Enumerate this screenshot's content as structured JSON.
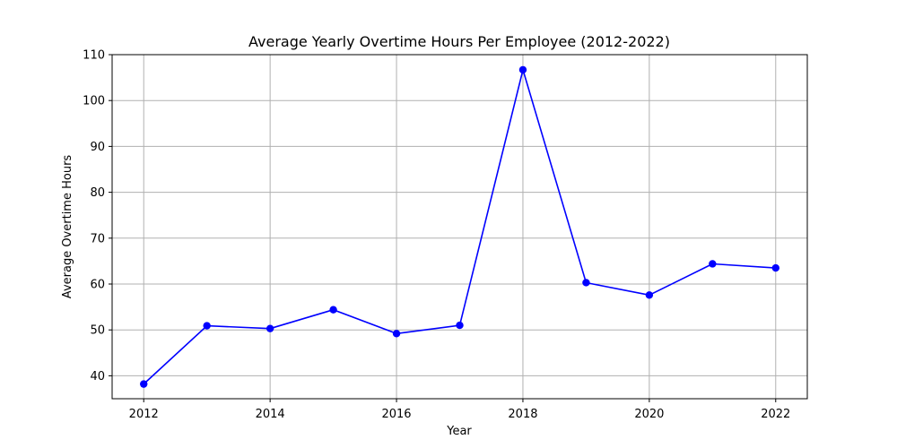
{
  "chart_data": {
    "type": "line",
    "title": "Average Yearly Overtime Hours Per Employee (2012-2022)",
    "xlabel": "Year",
    "ylabel": "Average Overtime Hours",
    "x": [
      2012,
      2013,
      2014,
      2015,
      2016,
      2017,
      2018,
      2019,
      2020,
      2021,
      2022
    ],
    "series": [
      {
        "values": [
          38.2,
          50.9,
          50.3,
          54.4,
          49.2,
          51.0,
          106.7,
          60.3,
          57.6,
          64.4,
          63.5
        ],
        "color": "#0000ff"
      }
    ],
    "xlim": [
      2011.5,
      2022.5
    ],
    "ylim": [
      35,
      110
    ],
    "xticks": [
      2012,
      2014,
      2016,
      2018,
      2020,
      2022
    ],
    "yticks": [
      40,
      50,
      60,
      70,
      80,
      90,
      100,
      110
    ],
    "grid": true,
    "marker": "circle",
    "legend": false
  }
}
